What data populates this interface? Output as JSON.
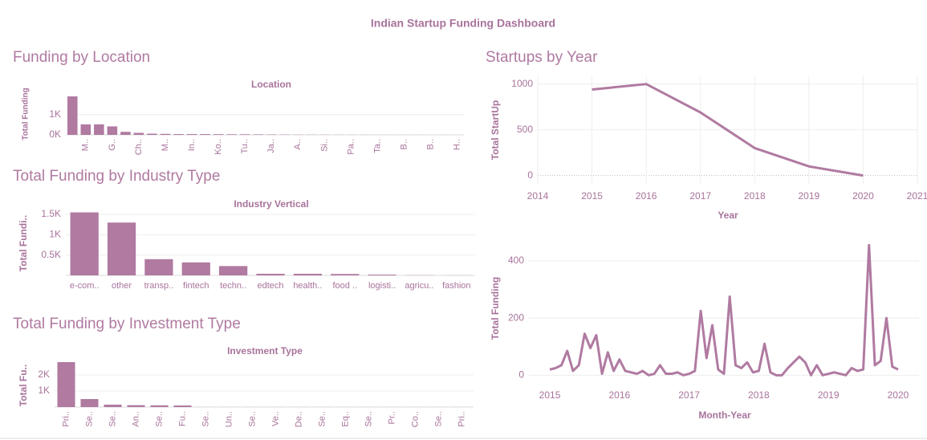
{
  "title": "Indian Startup Funding Dashboard",
  "chart_data": [
    {
      "type": "bar",
      "title": "Funding by Location",
      "subtitle": "Location",
      "y_label": "Total Funding",
      "color": "#b07aa1",
      "grid": true,
      "categories": [
        null,
        "M..",
        null,
        "G..",
        null,
        "Ch..",
        null,
        "M..",
        null,
        "In..",
        null,
        "Ko..",
        null,
        "Tu..",
        null,
        "Ja..",
        null,
        "A..",
        null,
        "Si..",
        null,
        "Pa..",
        null,
        "Ta..",
        null,
        "B..",
        null,
        "B..",
        null,
        "H.."
      ],
      "values": [
        1900,
        520,
        520,
        420,
        150,
        100,
        60,
        50,
        40,
        40,
        40,
        35,
        30,
        30,
        25,
        20,
        15,
        12,
        10,
        8,
        7,
        6,
        5,
        4,
        4,
        3,
        3,
        2,
        2,
        1
      ],
      "ylim": [
        0,
        2100
      ],
      "yticks": [
        {
          "value": 0,
          "label": "0K"
        },
        {
          "value": 1000,
          "label": "1K"
        }
      ]
    },
    {
      "type": "bar",
      "title": "Total Funding by Industry Type",
      "subtitle": "Industry Vertical",
      "y_label": "Total Fundi..",
      "color": "#b07aa1",
      "grid": true,
      "categories": [
        "e-com..",
        "other",
        "transp..",
        "fintech",
        "techn..",
        "edtech",
        "health..",
        "food ..",
        "logisti..",
        "agricu..",
        "fashion"
      ],
      "values": [
        1550,
        1300,
        400,
        320,
        230,
        40,
        40,
        35,
        20,
        5,
        3
      ],
      "ylim": [
        0,
        1600
      ],
      "yticks": [
        {
          "value": 500,
          "label": "0.5K"
        },
        {
          "value": 1000,
          "label": "1K"
        },
        {
          "value": 1500,
          "label": "1.5K"
        }
      ]
    },
    {
      "type": "bar",
      "title": "Total Funding by Investment Type",
      "subtitle": "Investment Type",
      "y_label": "Total Fu..",
      "color": "#b07aa1",
      "grid": true,
      "categories": [
        "Pri..",
        "Se..",
        "Se..",
        "An..",
        "Se..",
        "Fu..",
        "Se..",
        "Un..",
        "Se..",
        "Ve..",
        "De..",
        "Se..",
        "Eq..",
        "Se..",
        "Pr..",
        "Co..",
        "Se..",
        "Pri.."
      ],
      "values": [
        2800,
        500,
        150,
        120,
        110,
        100,
        5,
        5,
        5,
        5,
        5,
        5,
        5,
        5,
        5,
        5,
        5,
        5
      ],
      "ylim": [
        0,
        3000
      ],
      "yticks": [
        {
          "value": 1000,
          "label": "1K"
        },
        {
          "value": 2000,
          "label": "2K"
        }
      ]
    },
    {
      "type": "line",
      "title": "Startups by Year",
      "x_label": "Year",
      "y_label": "Total StartUp",
      "color": "#b07aa1",
      "grid": true,
      "x": [
        2015,
        2016,
        2017,
        2018,
        2019,
        2020
      ],
      "values": [
        940,
        1000,
        690,
        300,
        100,
        0
      ],
      "xlim": [
        2014,
        2021
      ],
      "xticks": [
        2014,
        2015,
        2016,
        2017,
        2018,
        2019,
        2020,
        2021
      ],
      "ylim": [
        -100,
        1085
      ],
      "yticks": [
        0,
        500,
        1000
      ]
    },
    {
      "type": "line",
      "x_label": "Month-Year",
      "y_label": "Total Funding",
      "color": "#b07aa1",
      "grid": true,
      "x": [
        2015,
        2015.083,
        2015.167,
        2015.25,
        2015.333,
        2015.417,
        2015.5,
        2015.583,
        2015.667,
        2015.75,
        2015.833,
        2015.917,
        2016,
        2016.083,
        2016.167,
        2016.25,
        2016.333,
        2016.417,
        2016.5,
        2016.583,
        2016.667,
        2016.75,
        2016.833,
        2016.917,
        2017,
        2017.083,
        2017.167,
        2017.25,
        2017.333,
        2017.417,
        2017.5,
        2017.583,
        2017.667,
        2017.75,
        2017.833,
        2017.917,
        2018,
        2018.083,
        2018.167,
        2018.25,
        2018.333,
        2018.417,
        2018.5,
        2018.583,
        2018.667,
        2018.75,
        2018.833,
        2018.917,
        2019,
        2019.083,
        2019.167,
        2019.25,
        2019.333,
        2019.417,
        2019.5,
        2019.583,
        2019.667,
        2019.75,
        2019.833,
        2019.917,
        2020
      ],
      "values": [
        20,
        25,
        35,
        85,
        15,
        35,
        145,
        95,
        140,
        5,
        80,
        15,
        55,
        15,
        10,
        5,
        15,
        0,
        5,
        35,
        5,
        5,
        10,
        0,
        5,
        15,
        225,
        60,
        175,
        20,
        5,
        275,
        35,
        25,
        45,
        10,
        15,
        110,
        10,
        0,
        0,
        25,
        45,
        65,
        45,
        0,
        35,
        0,
        5,
        10,
        5,
        0,
        25,
        15,
        20,
        455,
        35,
        50,
        200,
        30,
        20
      ],
      "xlim": [
        2014.7,
        2020.3
      ],
      "xticks": [
        2015,
        2016,
        2017,
        2018,
        2019,
        2020
      ],
      "ylim": [
        -30,
        470
      ],
      "yticks": [
        0,
        200,
        400
      ]
    }
  ]
}
